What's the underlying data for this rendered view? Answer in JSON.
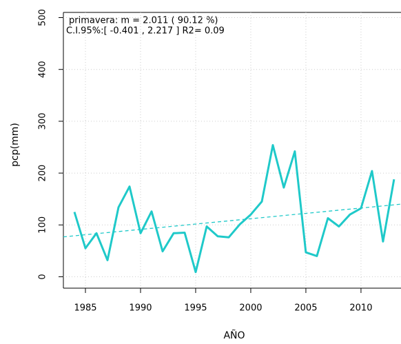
{
  "chart_data": {
    "type": "line",
    "annotations": [
      "primavera:    m =  2.011 ( 90.12 %)",
      "C.I.95%:[ -0.401 , 2.217 ]   R2= 0.09"
    ],
    "x_label": "AÑO",
    "y_label": "pcp(mm)",
    "x": [
      1984,
      1985,
      1986,
      1987,
      1988,
      1989,
      1990,
      1991,
      1992,
      1993,
      1994,
      1995,
      1996,
      1997,
      1998,
      1999,
      2000,
      2001,
      2002,
      2003,
      2004,
      2005,
      2006,
      2007,
      2008,
      2009,
      2010,
      2011,
      2012,
      2013
    ],
    "series": [
      {
        "color": "#1fc9c9",
        "values": [
          125,
          55,
          84,
          32,
          134,
          174,
          84,
          126,
          49,
          84,
          85,
          9,
          97,
          78,
          76,
          101,
          120,
          145,
          254,
          172,
          242,
          47,
          40,
          113,
          97,
          120,
          132,
          204,
          68,
          188
        ]
      }
    ],
    "trend": {
      "color": "#1fc9c9",
      "x": [
        1983,
        2013.6
      ],
      "values": [
        77,
        140
      ]
    },
    "xlim": [
      1983,
      2013.63
    ],
    "ylim": [
      -22,
      510
    ],
    "xticks": [
      1985,
      1990,
      1995,
      2000,
      2005,
      2010
    ],
    "yticks": [
      0,
      100,
      200,
      300,
      400,
      500
    ],
    "grid": true
  }
}
